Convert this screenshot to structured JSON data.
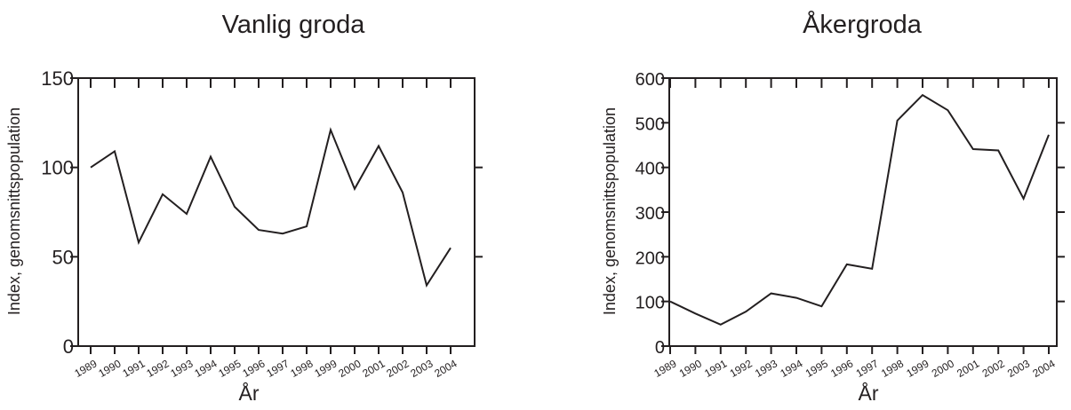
{
  "chart_data": [
    {
      "type": "line",
      "title": "Vanlig groda",
      "xlabel": "År",
      "ylabel": "Index, genomsnittspopulation",
      "categories": [
        "1989",
        "1990",
        "1991",
        "1992",
        "1993",
        "1994",
        "1995",
        "1996",
        "1997",
        "1998",
        "1999",
        "2000",
        "2001",
        "2002",
        "2003",
        "2004"
      ],
      "values": [
        100,
        109,
        58,
        85,
        74,
        106,
        78,
        65,
        63,
        67,
        121,
        88,
        112,
        86,
        34,
        55
      ],
      "ylim": [
        0,
        150
      ],
      "yticks": [
        "0",
        "50",
        "100",
        "150"
      ],
      "grid": false,
      "legend": "none",
      "line_color": "#231f20"
    },
    {
      "type": "line",
      "title": "Åkergroda",
      "xlabel": "År",
      "ylabel": "Index, genomsnittspopulation",
      "categories": [
        "1989",
        "1990",
        "1991",
        "1992",
        "1993",
        "1994",
        "1995",
        "1996",
        "1997",
        "1998",
        "1999",
        "2000",
        "2001",
        "2002",
        "2003",
        "2004"
      ],
      "values": [
        100,
        73,
        48,
        77,
        118,
        108,
        89,
        183,
        173,
        505,
        562,
        528,
        441,
        438,
        330,
        473
      ],
      "ylim": [
        0,
        600
      ],
      "yticks": [
        "0",
        "100",
        "200",
        "300",
        "400",
        "500",
        "600"
      ],
      "grid": false,
      "legend": "none",
      "line_color": "#231f20"
    }
  ]
}
